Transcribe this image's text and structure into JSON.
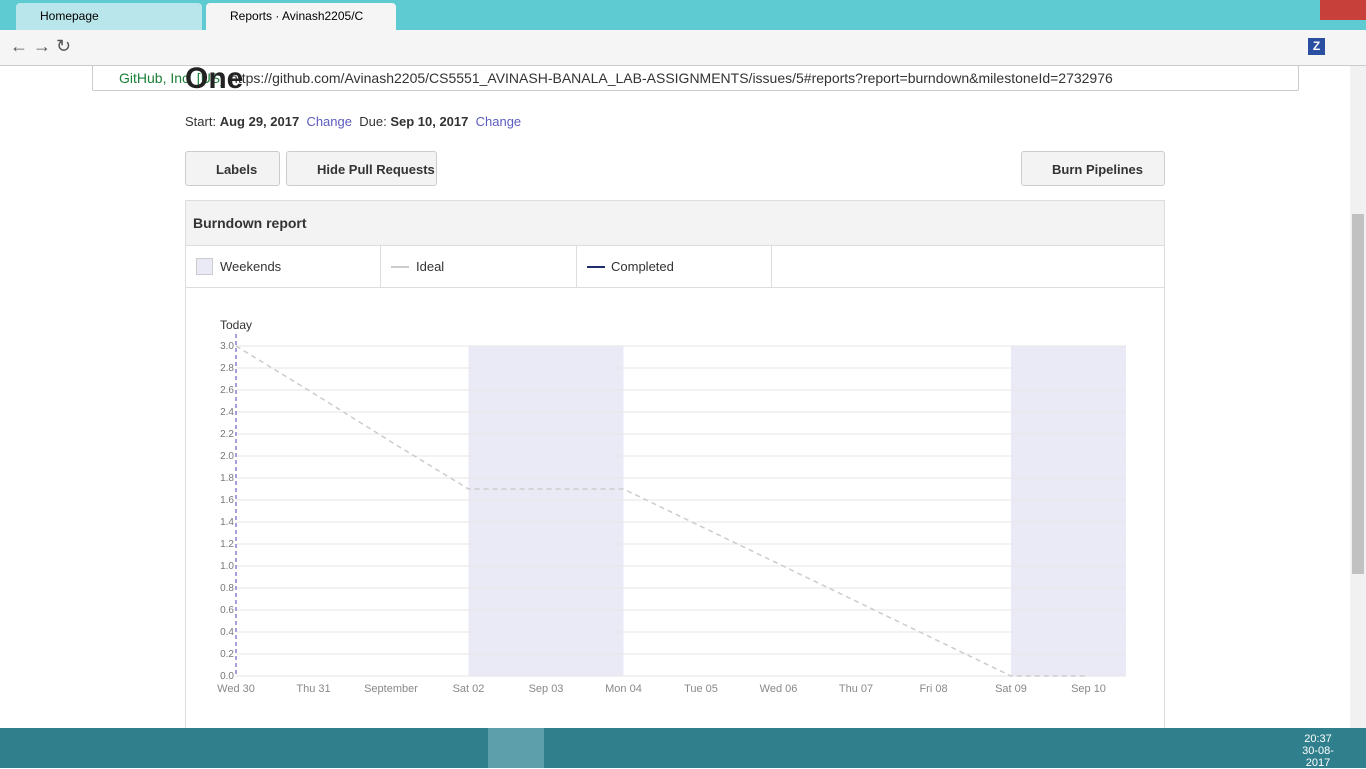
{
  "browser": {
    "tabs": [
      "Homepage",
      "Reports · Avinash2205/C"
    ],
    "security": "GitHub, Inc. [US]",
    "url": "https://github.com/Avinash2205/CS5551_AVINASH-BANALA_LAB-ASSIGNMENTS/issues/5#reports?report=burndown&milestoneId=2732976",
    "extension": "Z"
  },
  "page": {
    "title": "One",
    "start_label": "Start:",
    "start": "Aug 29, 2017",
    "change": "Change",
    "due_label": "Due:",
    "due": "Sep 10, 2017",
    "change2": "Change",
    "buttons": [
      "Labels",
      "Hide Pull Requests",
      "Burn Pipelines"
    ],
    "report_title": "Burndown report"
  },
  "chart_data": {
    "type": "line",
    "weekends_label": "Weekends",
    "today_label": "Today",
    "categories": [
      "Wed 30",
      "Thu 31",
      "September",
      "Sat 02",
      "Sep 03",
      "Mon 04",
      "Tue 05",
      "Wed 06",
      "Thu 07",
      "Fri 08",
      "Sat 09",
      "Sep 10"
    ],
    "series": [
      {
        "name": "Ideal",
        "color": "#cccccc",
        "values": [
          3.0,
          2.57,
          2.13,
          1.7,
          1.7,
          1.7,
          1.36,
          1.02,
          0.68,
          0.34,
          0,
          0
        ]
      },
      {
        "name": "Completed",
        "color": "#1f2d6e",
        "values": [
          null,
          null,
          null,
          null,
          null,
          null,
          null,
          null,
          null,
          null,
          null,
          null
        ]
      }
    ],
    "weekends": [
      [
        3,
        5
      ],
      [
        10,
        11
      ]
    ],
    "weekend_color": "#eaeaf7",
    "today_index": 0,
    "ylim": [
      0,
      3
    ],
    "yticks": [
      {
        "value": 0,
        "label": "0.0"
      },
      {
        "value": 0.2,
        "label": "0.2"
      },
      {
        "value": 0.4,
        "label": "0.4"
      },
      {
        "value": 0.6,
        "label": "0.6"
      },
      {
        "value": 0.8,
        "label": "0.8"
      },
      {
        "value": 1,
        "label": "1.0"
      },
      {
        "value": 1.2,
        "label": "1.2"
      },
      {
        "value": 1.4,
        "label": "1.4"
      },
      {
        "value": 1.6,
        "label": "1.6"
      },
      {
        "value": 1.8,
        "label": "1.8"
      },
      {
        "value": 2,
        "label": "2.0"
      },
      {
        "value": 2.2,
        "label": "2.2"
      },
      {
        "value": 2.4,
        "label": "2.4"
      },
      {
        "value": 2.6,
        "label": "2.6"
      },
      {
        "value": 2.8,
        "label": "2.8"
      },
      {
        "value": 3,
        "label": "3.0"
      }
    ],
    "grid": true
  },
  "taskbar": {
    "time": "20:37",
    "date": "30-08-2017"
  }
}
